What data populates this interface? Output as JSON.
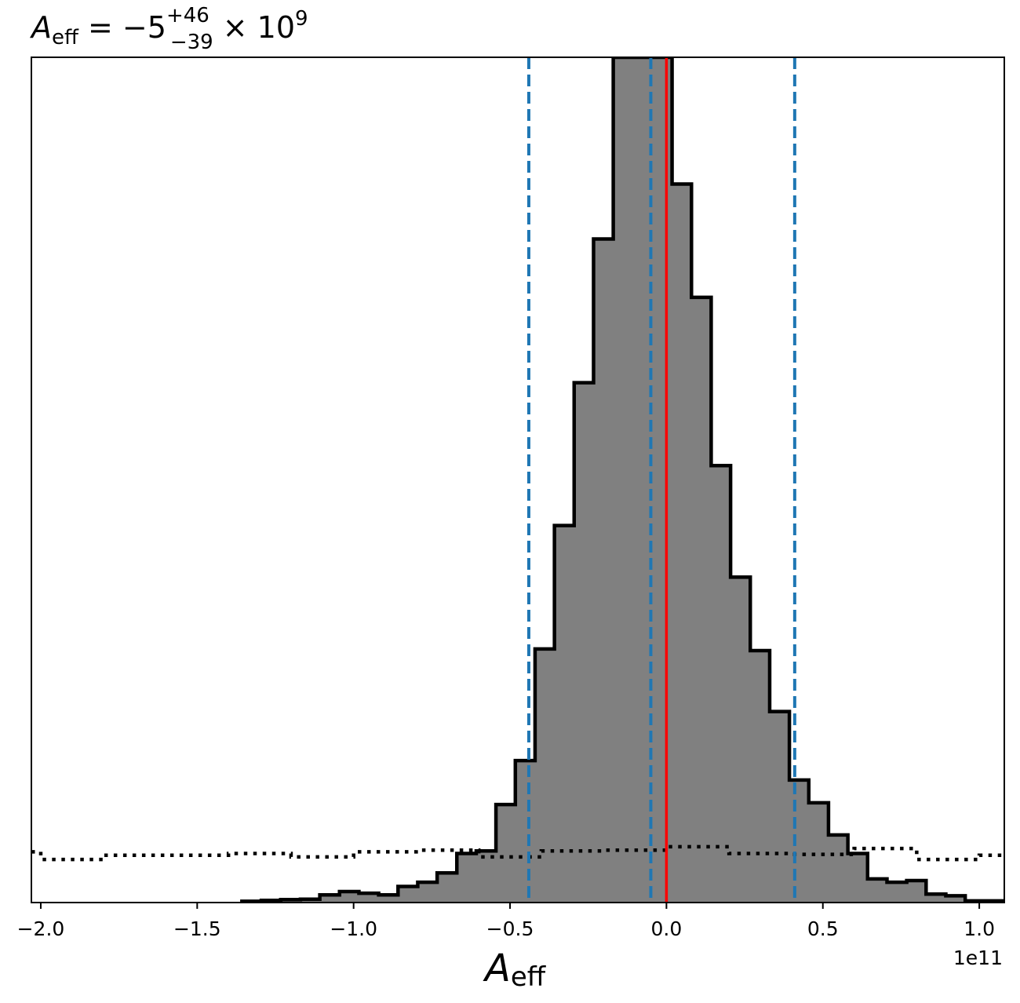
{
  "chart_data": {
    "type": "histogram",
    "title": {
      "symbol": "A",
      "subscript": "eff",
      "value_text": " = −5",
      "upper": "+46",
      "lower": "−39",
      "multiplier": " × 10",
      "exponent": "9"
    },
    "xlabel": {
      "symbol": "A",
      "subscript": "eff"
    },
    "ylabel": "",
    "x_offset_text": "1e11",
    "xlim": [
      -2.03,
      1.08
    ],
    "ylim": [
      0,
      1.0
    ],
    "x_scale": 100000000000.0,
    "grid": false,
    "legend": "none",
    "x_ticks": [
      {
        "value": -2.0,
        "label": "−2.0"
      },
      {
        "value": -1.5,
        "label": "−1.5"
      },
      {
        "value": -1.0,
        "label": "−1.0"
      },
      {
        "value": -0.5,
        "label": "−0.5"
      },
      {
        "value": 0.0,
        "label": "0.0"
      },
      {
        "value": 0.5,
        "label": "0.5"
      },
      {
        "value": 1.0,
        "label": "1.0"
      }
    ],
    "posterior": {
      "name": "",
      "fill_color": "#808080",
      "edge_color": "#000000",
      "bin_edges": [
        -1.357,
        -1.295,
        -1.233,
        -1.17,
        -1.108,
        -1.045,
        -0.983,
        -0.92,
        -0.858,
        -0.795,
        -0.733,
        -0.67,
        -0.608,
        -0.545,
        -0.483,
        -0.42,
        -0.358,
        -0.295,
        -0.233,
        -0.17,
        -0.108,
        -0.045,
        0.018,
        0.08,
        0.143,
        0.205,
        0.268,
        0.33,
        0.393,
        0.455,
        0.518,
        0.58,
        0.643,
        0.705,
        0.768,
        0.83,
        0.893,
        0.955,
        1.018,
        1.08
      ],
      "counts": [
        0.0015,
        0.0025,
        0.0035,
        0.004,
        0.009,
        0.013,
        0.011,
        0.009,
        0.019,
        0.024,
        0.035,
        0.058,
        0.061,
        0.116,
        0.168,
        0.3,
        0.446,
        0.615,
        0.785,
        1.0,
        1.0,
        1.0,
        0.85,
        0.716,
        0.517,
        0.385,
        0.298,
        0.226,
        0.145,
        0.118,
        0.08,
        0.058,
        0.028,
        0.024,
        0.026,
        0.01,
        0.008,
        0.002,
        0.002
      ]
    },
    "prior": {
      "name": "",
      "style": "dotted",
      "color": "#000000",
      "bin_edges": [
        -2.03,
        -2.0,
        -1.8,
        -1.4,
        -1.2,
        -1.0,
        -0.8,
        -0.6,
        -0.4,
        -0.2,
        0.0,
        0.2,
        0.4,
        0.6,
        0.8,
        1.0,
        1.08
      ],
      "counts": [
        0.06,
        0.051,
        0.056,
        0.058,
        0.054,
        0.06,
        0.062,
        0.054,
        0.061,
        0.062,
        0.066,
        0.058,
        0.057,
        0.064,
        0.051,
        0.056
      ]
    },
    "vertical_lines": [
      {
        "x": -0.44,
        "style": "dashed",
        "color": "#1f77b4"
      },
      {
        "x": -0.05,
        "style": "dashed",
        "color": "#1f77b4"
      },
      {
        "x": 0.41,
        "style": "dashed",
        "color": "#1f77b4"
      },
      {
        "x": 0.0,
        "style": "solid",
        "color": "#ff0000"
      }
    ]
  }
}
